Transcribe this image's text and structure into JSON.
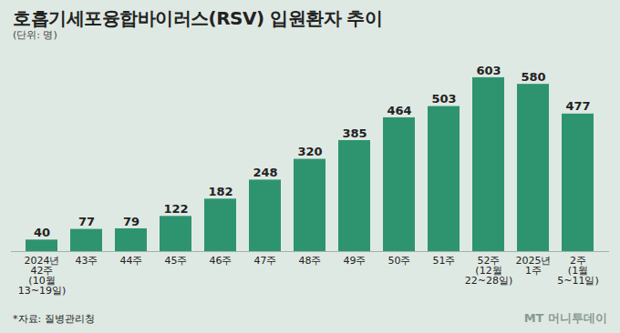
{
  "chart_data": {
    "type": "bar",
    "title": "호흡기세포융합바이러스(RSV) 입원환자 추이",
    "subtitle": "(단위: 명)",
    "categories": [
      "2024년\n42주\n(10월\n13~19일)",
      "43주",
      "44주",
      "45주",
      "46주",
      "47주",
      "48주",
      "49주",
      "50주",
      "51주",
      "52주\n(12월\n22~28일)",
      "2025년\n1주",
      "2주\n(1월\n5~11일)"
    ],
    "values": [
      40,
      77,
      79,
      122,
      182,
      248,
      320,
      385,
      464,
      503,
      603,
      580,
      477
    ],
    "color": "#2e9470",
    "ylim": [
      0,
      650
    ],
    "grid": false,
    "data_labels": true,
    "tick_labels": "x",
    "source": "*자료: 질병관리청",
    "watermark": "MT 머니투데이"
  }
}
